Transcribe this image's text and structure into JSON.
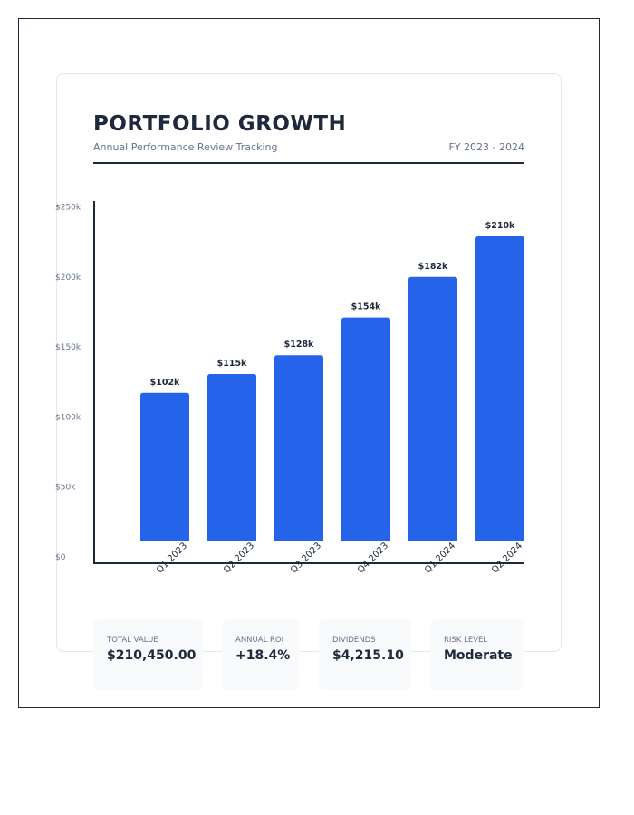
{
  "header": {
    "title": "PORTFOLIO GROWTH",
    "subtitle": "Annual Performance Review Tracking",
    "period": "FY 2023 - 2024"
  },
  "chart_data": {
    "type": "bar",
    "categories": [
      "Q1 2023",
      "Q2 2023",
      "Q3 2023",
      "Q4 2023",
      "Q1 2024",
      "Q2 2024"
    ],
    "values": [
      102,
      115,
      128,
      154,
      182,
      210
    ],
    "data_labels": [
      "$102k",
      "$115k",
      "$128k",
      "$154k",
      "$182k",
      "$210k"
    ],
    "y_ticks": [
      "$0",
      "$50k",
      "$100k",
      "$150k",
      "$200k",
      "$250k"
    ],
    "ylim": [
      0,
      250
    ],
    "unit": "thousand USD",
    "bar_color": "#2563eb",
    "grid": false
  },
  "stats": [
    {
      "label": "Total Value",
      "value": "$210,450.00"
    },
    {
      "label": "Annual ROI",
      "value": "+18.4%"
    },
    {
      "label": "Dividends",
      "value": "$4,215.10"
    },
    {
      "label": "Risk Level",
      "value": "Moderate"
    }
  ]
}
